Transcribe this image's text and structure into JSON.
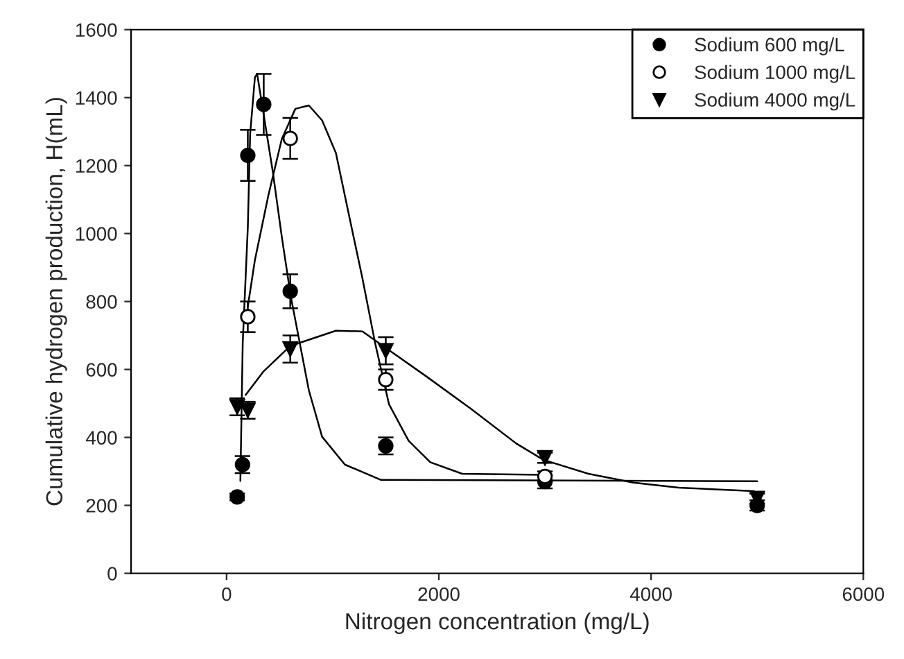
{
  "chart_data": {
    "type": "scatter",
    "xlabel": "Nitrogen concentration (mg/L)",
    "ylabel": "Cumulative hydrogen production, H(mL)",
    "xlim": [
      -900,
      6000
    ],
    "xticks": [
      0,
      2000,
      4000,
      6000
    ],
    "ylim": [
      0,
      1600
    ],
    "yticks": [
      0,
      200,
      400,
      600,
      800,
      1000,
      1200,
      1400,
      1600
    ],
    "grid": false,
    "legend": "top right",
    "series": [
      {
        "name": "Sodium 600 mg/L",
        "marker": "circle",
        "color": "#000000",
        "x": [
          100,
          150,
          200,
          350,
          600,
          1500,
          3000,
          5000
        ],
        "values": [
          225,
          320,
          1230,
          1380,
          830,
          375,
          270,
          200
        ],
        "errors": [
          10,
          25,
          75,
          90,
          50,
          25,
          20,
          15
        ]
      },
      {
        "name": "Sodium 1000 mg/L",
        "marker": "circle",
        "color": "#ffffff",
        "x": [
          200,
          600,
          1500,
          3000
        ],
        "values": [
          755,
          1280,
          570,
          285
        ],
        "errors": [
          45,
          60,
          30,
          15
        ]
      },
      {
        "name": "Sodium 4000 mg/L",
        "marker": "triangle",
        "color": "#000000",
        "x": [
          100,
          200,
          600,
          1500,
          3000,
          5000
        ],
        "values": [
          490,
          480,
          660,
          655,
          340,
          220
        ],
        "errors": [
          25,
          25,
          40,
          40,
          15,
          15
        ]
      },
      {
        "type": "line",
        "marker": "none",
        "color": "#000000",
        "x": [
          130,
          152,
          200,
          222,
          267,
          288,
          435,
          520,
          606,
          690,
          775,
          900,
          1115,
          1455,
          5000
        ],
        "values": [
          272,
          677,
          1018,
          1293,
          1460,
          1470,
          1183,
          991,
          813,
          677,
          539,
          402,
          320,
          275,
          271
        ]
      },
      {
        "type": "line",
        "marker": "none",
        "color": "#000000",
        "x": [
          200,
          267,
          395,
          520,
          648,
          775,
          900,
          1030,
          1150,
          1280,
          1400,
          1530,
          1715,
          1920,
          2220,
          3000
        ],
        "values": [
          785,
          922,
          1114,
          1278,
          1367,
          1377,
          1333,
          1237,
          1059,
          868,
          677,
          498,
          390,
          327,
          293,
          290
        ]
      },
      {
        "type": "line",
        "marker": "none",
        "color": "#000000",
        "x": [
          180,
          350,
          600,
          1030,
          1280,
          1530,
          1880,
          2300,
          2730,
          2985,
          3410,
          3835,
          4260,
          4970
        ],
        "values": [
          525,
          595,
          669,
          714,
          712,
          657,
          580,
          485,
          382,
          334,
          293,
          267,
          252,
          242
        ]
      }
    ]
  }
}
